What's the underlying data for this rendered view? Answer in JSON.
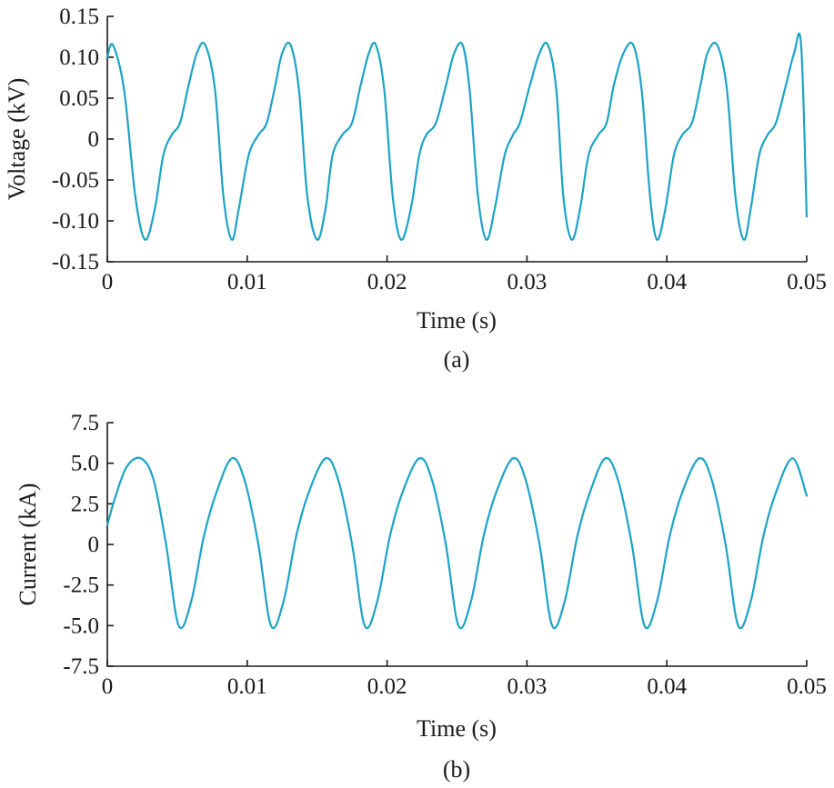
{
  "chart_data": [
    {
      "type": "line",
      "caption": "(a)",
      "xlabel": "Time (s)",
      "ylabel": "Voltage (kV)",
      "xlim": [
        0,
        0.05
      ],
      "ylim": [
        -0.15,
        0.15
      ],
      "xticks": [
        0,
        0.01,
        0.02,
        0.03,
        0.04,
        0.05
      ],
      "xtick_labels": [
        "0",
        "0.01",
        "0.02",
        "0.03",
        "0.04",
        "0.05"
      ],
      "yticks": [
        0.15,
        0.1,
        0.05,
        0,
        -0.05,
        -0.1,
        -0.15
      ],
      "ytick_labels": [
        "0.15",
        "0.10",
        "0.05",
        "0",
        "-0.05",
        "-0.10",
        "-0.15"
      ],
      "grid": false,
      "series_color": "#1ba3c6",
      "series": [
        {
          "x": [
            0,
            0.0004,
            0.0012,
            0.002,
            0.0027,
            0.0034,
            0.004,
            0.0046,
            0.0052,
            0.0058,
            0.0064,
            0.007,
            0.0077,
            0.0083,
            0.0089,
            0.0094,
            0.0101,
            0.0108,
            0.0114,
            0.012,
            0.0125,
            0.0131,
            0.0137,
            0.0143,
            0.015,
            0.0156,
            0.0161,
            0.0168,
            0.0175,
            0.0181,
            0.0187,
            0.0192,
            0.0198,
            0.0204,
            0.021,
            0.0217,
            0.0223,
            0.0228,
            0.0235,
            0.0242,
            0.0248,
            0.0254,
            0.0259,
            0.0265,
            0.0271,
            0.0277,
            0.0284,
            0.029,
            0.0295,
            0.0302,
            0.0309,
            0.0315,
            0.0321,
            0.0326,
            0.0332,
            0.0338,
            0.0344,
            0.0351,
            0.0357,
            0.0362,
            0.0369,
            0.0376,
            0.0382,
            0.0388,
            0.0393,
            0.0399,
            0.0405,
            0.0411,
            0.0418,
            0.0424,
            0.0429,
            0.0436,
            0.0443,
            0.0449,
            0.0455,
            0.046,
            0.0466,
            0.0472,
            0.0478,
            0.0485,
            0.0491,
            0.0496,
            0.05
          ],
          "y": [
            0.1,
            0.115,
            0.06,
            -0.07,
            -0.123,
            -0.085,
            -0.02,
            0.005,
            0.02,
            0.065,
            0.105,
            0.115,
            0.06,
            -0.07,
            -0.123,
            -0.085,
            -0.02,
            0.005,
            0.02,
            0.065,
            0.105,
            0.115,
            0.06,
            -0.07,
            -0.123,
            -0.085,
            -0.02,
            0.005,
            0.02,
            0.065,
            0.105,
            0.115,
            0.06,
            -0.07,
            -0.123,
            -0.085,
            -0.02,
            0.005,
            0.02,
            0.065,
            0.105,
            0.115,
            0.06,
            -0.07,
            -0.123,
            -0.085,
            -0.02,
            0.005,
            0.02,
            0.065,
            0.105,
            0.115,
            0.06,
            -0.07,
            -0.123,
            -0.085,
            -0.02,
            0.005,
            0.02,
            0.065,
            0.105,
            0.115,
            0.06,
            -0.07,
            -0.123,
            -0.085,
            -0.02,
            0.005,
            0.02,
            0.065,
            0.105,
            0.115,
            0.06,
            -0.07,
            -0.123,
            -0.085,
            -0.02,
            0.005,
            0.02,
            0.065,
            0.105,
            0.115,
            -0.095
          ]
        }
      ]
    },
    {
      "type": "line",
      "caption": "(b)",
      "xlabel": "Time (s)",
      "ylabel": "Current (kA)",
      "xlim": [
        0,
        0.05
      ],
      "ylim": [
        -7.5,
        7.5
      ],
      "xticks": [
        0,
        0.01,
        0.02,
        0.03,
        0.04,
        0.05
      ],
      "xtick_labels": [
        "0",
        "0.01",
        "0.02",
        "0.03",
        "0.04",
        "0.05"
      ],
      "yticks": [
        7.5,
        5.0,
        2.5,
        0,
        -2.5,
        -5.0,
        -7.5
      ],
      "ytick_labels": [
        "7.5",
        "5.0",
        "2.5",
        "0",
        "-2.5",
        "-5.0",
        "-7.5"
      ],
      "grid": false,
      "series_color": "#1ba3c6",
      "series": [
        {
          "x": [
            0,
            0.0006,
            0.0014,
            0.0024,
            0.0033,
            0.0042,
            0.0051,
            0.006,
            0.0069,
            0.0078,
            0.0089,
            0.0098,
            0.0108,
            0.0117,
            0.0126,
            0.0135,
            0.0144,
            0.0156,
            0.0165,
            0.0175,
            0.0184,
            0.0193,
            0.0202,
            0.0211,
            0.0223,
            0.0232,
            0.0242,
            0.0251,
            0.026,
            0.0269,
            0.0278,
            0.029,
            0.0299,
            0.0309,
            0.0318,
            0.0327,
            0.0336,
            0.0345,
            0.0356,
            0.0365,
            0.0375,
            0.0384,
            0.0393,
            0.0402,
            0.0411,
            0.0423,
            0.0432,
            0.0442,
            0.0451,
            0.046,
            0.0469,
            0.0478,
            0.049,
            0.05
          ],
          "y": [
            1.2,
            3.0,
            4.8,
            5.3,
            4.0,
            0.0,
            -5.0,
            -3.5,
            0.5,
            3.2,
            5.3,
            4.0,
            0.0,
            -5.0,
            -3.5,
            0.5,
            3.2,
            5.3,
            4.0,
            0.0,
            -5.0,
            -3.5,
            0.5,
            3.2,
            5.3,
            4.0,
            0.0,
            -5.0,
            -3.5,
            0.5,
            3.2,
            5.3,
            4.0,
            0.0,
            -5.0,
            -3.5,
            0.5,
            3.2,
            5.3,
            4.0,
            0.0,
            -5.0,
            -3.5,
            0.5,
            3.2,
            5.3,
            4.0,
            0.0,
            -5.0,
            -3.5,
            0.5,
            3.2,
            5.3,
            3.0
          ]
        }
      ]
    }
  ]
}
